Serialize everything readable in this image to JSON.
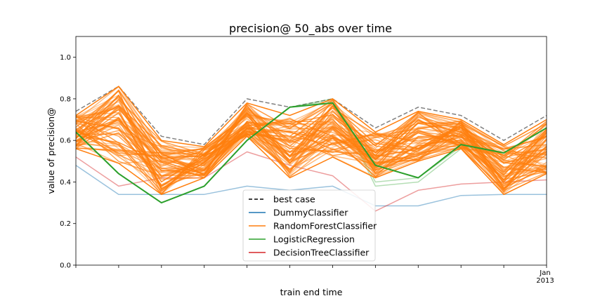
{
  "chart_data": {
    "type": "line",
    "title": "precision@ 50_abs over time",
    "xlabel": "train end time",
    "ylabel": "value of precision@",
    "ylim": [
      0.0,
      1.1
    ],
    "yticks": [
      "0.0",
      "0.2",
      "0.4",
      "0.6",
      "0.8",
      "1.0"
    ],
    "xtick_labels": [
      {
        "index": 11,
        "lines": [
          "Jan",
          "2013"
        ]
      }
    ],
    "x_count": 12,
    "legend_placement": "lower-center",
    "legend": [
      {
        "name": "best case",
        "color": "#000000",
        "style": "dashed"
      },
      {
        "name": "DummyClassifier",
        "color": "#1f77b4",
        "style": "solid"
      },
      {
        "name": "RandomForestClassifier",
        "color": "#ff7f0e",
        "style": "solid"
      },
      {
        "name": "LogisticRegression",
        "color": "#2ca02c",
        "style": "solid"
      },
      {
        "name": "DecisionTreeClassifier",
        "color": "#d62728",
        "style": "solid"
      }
    ],
    "series": [
      {
        "name": "best case",
        "color": "#808080",
        "dash": true,
        "alpha": 1,
        "width": 1.5,
        "values": [
          0.74,
          0.86,
          0.62,
          0.58,
          0.8,
          0.76,
          0.8,
          0.66,
          0.76,
          0.72,
          0.6,
          0.72
        ]
      },
      {
        "name": "DummyClassifier",
        "color": "#1f77b4",
        "alpha": 0.45,
        "width": 1.5,
        "values": [
          0.48,
          0.34,
          0.34,
          0.34,
          0.38,
          0.36,
          0.38,
          0.285,
          0.285,
          0.335,
          0.34,
          0.34
        ]
      },
      {
        "name": "DecisionTreeClassifier",
        "color": "#d62728",
        "alpha": 0.45,
        "width": 1.5,
        "values": [
          0.52,
          0.38,
          0.42,
          0.42,
          0.545,
          0.48,
          0.43,
          0.26,
          0.36,
          0.39,
          0.4,
          0.41
        ]
      },
      {
        "name": "LogisticRegression (faint)",
        "color": "#2ca02c",
        "alpha": 0.35,
        "width": 1.5,
        "values": [
          0.64,
          0.44,
          0.3,
          0.38,
          0.6,
          0.76,
          0.8,
          0.38,
          0.4,
          0.56,
          0.54,
          0.66
        ]
      },
      {
        "name": "LogisticRegression (faint 2)",
        "color": "#2ca02c",
        "alpha": 0.35,
        "width": 1.5,
        "values": [
          0.64,
          0.44,
          0.3,
          0.38,
          0.6,
          0.76,
          0.79,
          0.4,
          0.42,
          0.57,
          0.54,
          0.66
        ]
      },
      {
        "name": "RandomForestClassifier",
        "color": "#ff7f0e",
        "alpha": 0.7,
        "width": 1.5,
        "band": true,
        "values_top": [
          0.72,
          0.86,
          0.6,
          0.57,
          0.78,
          0.72,
          0.8,
          0.64,
          0.74,
          0.7,
          0.58,
          0.7
        ],
        "values_bottom": [
          0.56,
          0.49,
          0.34,
          0.42,
          0.62,
          0.42,
          0.52,
          0.42,
          0.5,
          0.56,
          0.34,
          0.44
        ],
        "count": 70
      },
      {
        "name": "LogisticRegression",
        "color": "#2ca02c",
        "alpha": 1,
        "width": 2,
        "values": [
          0.64,
          0.44,
          0.3,
          0.38,
          0.6,
          0.76,
          0.78,
          0.48,
          0.42,
          0.58,
          0.54,
          0.66
        ]
      }
    ]
  }
}
